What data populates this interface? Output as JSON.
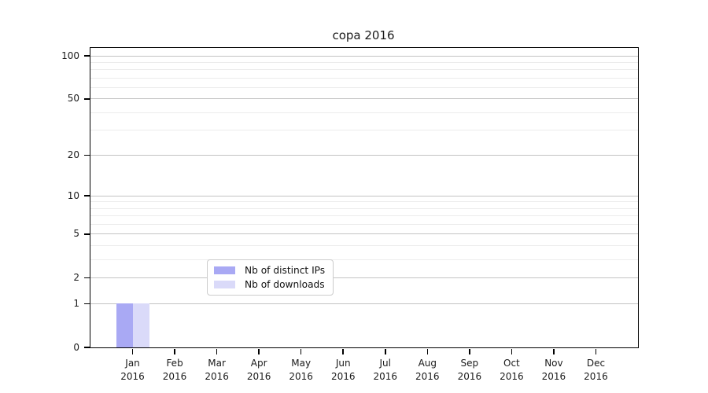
{
  "figure": {
    "background": "#ffffff",
    "spine_color": "#000000"
  },
  "chart_data": {
    "type": "bar",
    "title": "copa 2016",
    "categories": [
      "Jan",
      "Feb",
      "Mar",
      "Apr",
      "May",
      "Jun",
      "Jul",
      "Aug",
      "Sep",
      "Oct",
      "Nov",
      "Dec"
    ],
    "category_year": "2016",
    "series": [
      {
        "name": "Nb of distinct IPs",
        "color": "#a9a9f4",
        "values": [
          1,
          0,
          0,
          0,
          0,
          0,
          0,
          0,
          0,
          0,
          0,
          0
        ]
      },
      {
        "name": "Nb of downloads",
        "color": "#dadaf9",
        "values": [
          1,
          0,
          0,
          0,
          0,
          0,
          0,
          0,
          0,
          0,
          0,
          0
        ]
      }
    ],
    "y_axis": {
      "scale": "log1p",
      "major_ticks": [
        0,
        1,
        2,
        5,
        10,
        20,
        50,
        100
      ],
      "minor_gridlines": [
        3,
        4,
        6,
        7,
        8,
        9,
        30,
        40,
        60,
        70,
        80,
        90
      ],
      "range": [
        0,
        113
      ]
    },
    "x_axis": {
      "label": ""
    },
    "legend": {
      "position": "lower-center",
      "border_color": "#cccccc"
    },
    "grid": {
      "major_color": "#c3c3c3",
      "minor_color": "#ececec"
    }
  }
}
